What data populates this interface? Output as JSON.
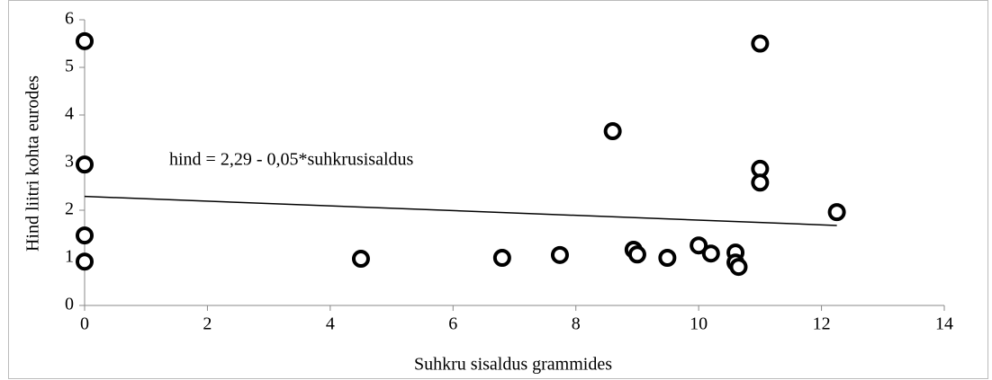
{
  "chart_data": {
    "type": "scatter",
    "xlabel": "Suhkru sisaldus grammides",
    "ylabel": "Hind liitri kohta eurodes",
    "annotation": "hind = 2,29 - 0,05*suhkrusisaldus",
    "x": [
      0,
      0,
      0,
      0,
      4.5,
      6.8,
      7.74,
      8.6,
      8.94,
      9.0,
      9.49,
      10.0,
      10.2,
      10.6,
      10.6,
      10.65,
      11.0,
      11.0,
      11.0,
      12.25
    ],
    "values": [
      5.55,
      2.96,
      1.47,
      0.92,
      0.98,
      1.0,
      1.06,
      3.66,
      1.17,
      1.07,
      1.0,
      1.26,
      1.09,
      1.11,
      0.9,
      0.81,
      5.5,
      2.87,
      2.58,
      1.96
    ],
    "trendline": {
      "x": [
        0,
        12.25
      ],
      "values": [
        2.29,
        1.68
      ]
    },
    "color": "#000000",
    "xlim": [
      0,
      14
    ],
    "xticks": [
      0,
      2,
      4,
      6,
      8,
      10,
      12,
      14
    ],
    "ylim": [
      0,
      6
    ],
    "yticks": [
      0,
      1,
      2,
      3,
      4,
      5,
      6
    ]
  }
}
